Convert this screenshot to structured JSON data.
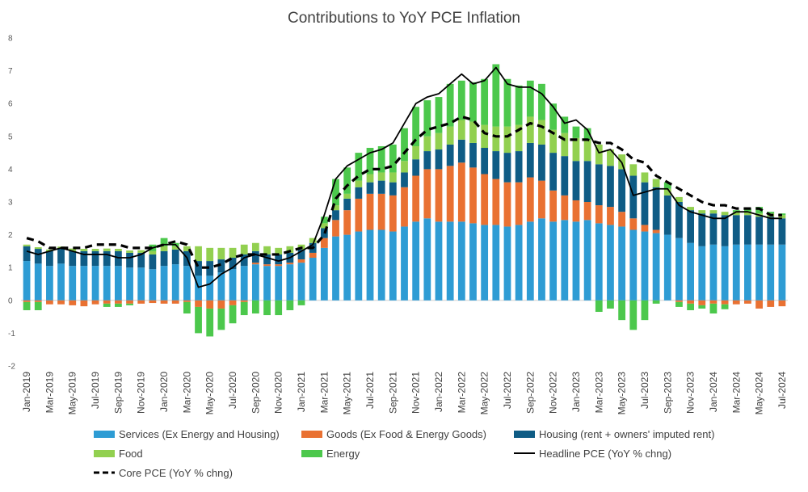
{
  "chart_data": {
    "type": "bar",
    "stacked": true,
    "title": "Contributions to YoY PCE Inflation",
    "xlabel": "",
    "ylabel": "",
    "ylim": [
      -2,
      8
    ],
    "yticks": [
      -2,
      -1,
      0,
      1,
      2,
      3,
      4,
      5,
      6,
      7,
      8
    ],
    "grid": false,
    "legend_position": "bottom",
    "categories": [
      "Jan-2019",
      "Feb-2019",
      "Mar-2019",
      "Apr-2019",
      "May-2019",
      "Jun-2019",
      "Jul-2019",
      "Aug-2019",
      "Sep-2019",
      "Oct-2019",
      "Nov-2019",
      "Dec-2019",
      "Jan-2020",
      "Feb-2020",
      "Mar-2020",
      "Apr-2020",
      "May-2020",
      "Jun-2020",
      "Jul-2020",
      "Aug-2020",
      "Sep-2020",
      "Oct-2020",
      "Nov-2020",
      "Dec-2020",
      "Jan-2021",
      "Feb-2021",
      "Mar-2021",
      "Apr-2021",
      "May-2021",
      "Jun-2021",
      "Jul-2021",
      "Aug-2021",
      "Sep-2021",
      "Oct-2021",
      "Nov-2021",
      "Dec-2021",
      "Jan-2022",
      "Feb-2022",
      "Mar-2022",
      "Apr-2022",
      "May-2022",
      "Jun-2022",
      "Jul-2022",
      "Aug-2022",
      "Sep-2022",
      "Oct-2022",
      "Nov-2022",
      "Dec-2022",
      "Jan-2023",
      "Feb-2023",
      "Mar-2023",
      "Apr-2023",
      "May-2023",
      "Jun-2023",
      "Jul-2023",
      "Aug-2023",
      "Sep-2023",
      "Oct-2023",
      "Nov-2023",
      "Dec-2023",
      "Jan-2024",
      "Feb-2024",
      "Mar-2024",
      "Apr-2024",
      "May-2024",
      "Jun-2024",
      "Jul-2024"
    ],
    "x_tick_labels": [
      "Jan-2019",
      "Mar-2019",
      "May-2019",
      "Jul-2019",
      "Sep-2019",
      "Nov-2019",
      "Jan-2020",
      "Mar-2020",
      "May-2020",
      "Jul-2020",
      "Sep-2020",
      "Nov-2020",
      "Jan-2021",
      "Mar-2021",
      "May-2021",
      "Jul-2021",
      "Sep-2021",
      "Nov-2021",
      "Jan-2022",
      "Mar-2022",
      "May-2022",
      "Jul-2022",
      "Sep-2022",
      "Nov-2022",
      "Jan-2023",
      "Mar-2023",
      "May-2023",
      "Jul-2023",
      "Sep-2023",
      "Nov-2023",
      "Jan-2024",
      "Mar-2024",
      "May-2024",
      "Jul-2024"
    ],
    "series": [
      {
        "name": "Services (Ex Energy and Housing)",
        "kind": "bar",
        "color": "#2E9CD4",
        "values": [
          1.2,
          1.12,
          1.05,
          1.12,
          1.05,
          1.05,
          1.05,
          1.05,
          1.05,
          1.0,
          1.0,
          0.95,
          1.05,
          1.1,
          1.05,
          0.75,
          0.75,
          0.85,
          0.95,
          1.05,
          1.1,
          1.05,
          1.05,
          1.1,
          1.15,
          1.3,
          1.6,
          1.95,
          2.0,
          2.1,
          2.15,
          2.15,
          2.1,
          2.25,
          2.4,
          2.5,
          2.4,
          2.4,
          2.4,
          2.35,
          2.3,
          2.3,
          2.25,
          2.3,
          2.4,
          2.5,
          2.4,
          2.45,
          2.4,
          2.45,
          2.35,
          2.3,
          2.25,
          2.15,
          2.1,
          2.05,
          2.0,
          1.9,
          1.75,
          1.65,
          1.7,
          1.65,
          1.7,
          1.7,
          1.7,
          1.7,
          1.7
        ]
      },
      {
        "name": "Goods (Ex Food & Energy Goods)",
        "kind": "bar",
        "color": "#E97132",
        "values": [
          -0.05,
          -0.05,
          -0.12,
          -0.12,
          -0.15,
          -0.18,
          -0.12,
          -0.1,
          -0.1,
          -0.1,
          -0.1,
          -0.08,
          -0.1,
          -0.1,
          -0.05,
          -0.2,
          -0.25,
          -0.25,
          -0.15,
          -0.05,
          0.05,
          0.05,
          0.05,
          0.05,
          0.1,
          0.15,
          0.3,
          0.5,
          0.75,
          1.0,
          1.1,
          1.1,
          1.1,
          1.2,
          1.4,
          1.5,
          1.6,
          1.7,
          1.8,
          1.7,
          1.55,
          1.4,
          1.35,
          1.3,
          1.35,
          1.15,
          0.95,
          0.75,
          0.65,
          0.55,
          0.55,
          0.55,
          0.45,
          0.35,
          0.2,
          0.1,
          0.0,
          -0.05,
          -0.1,
          -0.15,
          -0.1,
          -0.12,
          -0.12,
          -0.1,
          -0.25,
          -0.2,
          -0.18
        ]
      },
      {
        "name": "Housing (rent + owners' imputed rent)",
        "kind": "bar",
        "color": "#0F5C85",
        "values": [
          0.45,
          0.45,
          0.45,
          0.45,
          0.45,
          0.45,
          0.45,
          0.45,
          0.45,
          0.45,
          0.45,
          0.45,
          0.45,
          0.45,
          0.45,
          0.45,
          0.45,
          0.4,
          0.35,
          0.35,
          0.35,
          0.3,
          0.3,
          0.3,
          0.3,
          0.3,
          0.3,
          0.3,
          0.35,
          0.35,
          0.35,
          0.4,
          0.4,
          0.45,
          0.5,
          0.55,
          0.6,
          0.65,
          0.7,
          0.75,
          0.8,
          0.85,
          0.9,
          0.95,
          1.05,
          1.1,
          1.15,
          1.2,
          1.2,
          1.25,
          1.25,
          1.25,
          1.3,
          1.3,
          1.3,
          1.3,
          1.2,
          1.1,
          1.0,
          1.0,
          0.95,
          0.95,
          0.9,
          0.9,
          0.85,
          0.85,
          0.8
        ]
      },
      {
        "name": "Food",
        "kind": "bar",
        "color": "#92D050",
        "values": [
          0.05,
          0.05,
          0.05,
          0.07,
          0.08,
          0.07,
          0.07,
          0.08,
          0.07,
          0.07,
          0.08,
          0.1,
          0.15,
          0.1,
          0.15,
          0.45,
          0.4,
          0.35,
          0.3,
          0.3,
          0.25,
          0.25,
          0.2,
          0.2,
          0.15,
          0.15,
          0.15,
          0.15,
          0.15,
          0.2,
          0.25,
          0.25,
          0.3,
          0.35,
          0.4,
          0.45,
          0.5,
          0.55,
          0.6,
          0.65,
          0.7,
          0.75,
          0.8,
          0.8,
          0.8,
          0.75,
          0.7,
          0.7,
          0.7,
          0.65,
          0.6,
          0.5,
          0.45,
          0.35,
          0.3,
          0.25,
          0.2,
          0.15,
          0.1,
          0.1,
          0.1,
          0.1,
          0.1,
          0.1,
          0.1,
          0.1,
          0.1
        ]
      },
      {
        "name": "Energy",
        "kind": "bar",
        "color": "#4CC84C",
        "values": [
          -0.25,
          -0.25,
          0.0,
          0.0,
          0.0,
          0.0,
          0.0,
          -0.1,
          -0.1,
          -0.05,
          0.0,
          0.2,
          0.25,
          0.1,
          -0.35,
          -0.8,
          -0.85,
          -0.65,
          -0.55,
          -0.4,
          -0.4,
          -0.45,
          -0.45,
          -0.3,
          -0.15,
          0.0,
          0.2,
          0.8,
          0.8,
          0.85,
          0.8,
          0.8,
          0.85,
          1.0,
          1.2,
          1.1,
          1.1,
          1.3,
          1.2,
          1.2,
          1.4,
          1.9,
          1.45,
          1.2,
          1.1,
          1.1,
          0.8,
          0.5,
          0.35,
          0.35,
          -0.35,
          -0.25,
          -0.6,
          -0.9,
          -0.6,
          -0.1,
          0.2,
          -0.15,
          -0.2,
          -0.1,
          -0.3,
          -0.15,
          0.05,
          0.1,
          0.2,
          0.05,
          0.05
        ]
      },
      {
        "name": "Headline PCE (YoY % chng)",
        "kind": "line",
        "style": "solid",
        "color": "#000000",
        "values": [
          1.5,
          1.4,
          1.5,
          1.6,
          1.5,
          1.4,
          1.4,
          1.4,
          1.3,
          1.3,
          1.4,
          1.6,
          1.7,
          1.7,
          1.3,
          0.4,
          0.5,
          0.8,
          1.0,
          1.3,
          1.4,
          1.3,
          1.2,
          1.3,
          1.5,
          1.7,
          2.6,
          3.7,
          4.1,
          4.3,
          4.5,
          4.6,
          4.8,
          5.4,
          6.0,
          6.2,
          6.3,
          6.6,
          6.9,
          6.6,
          6.7,
          7.1,
          6.6,
          6.5,
          6.5,
          6.3,
          5.9,
          5.4,
          5.5,
          5.2,
          4.5,
          4.6,
          4.2,
          3.2,
          3.3,
          3.4,
          3.4,
          2.9,
          2.7,
          2.6,
          2.5,
          2.5,
          2.7,
          2.7,
          2.6,
          2.5,
          2.5
        ]
      },
      {
        "name": "Core PCE (YoY % chng)",
        "kind": "line",
        "style": "dashed",
        "color": "#000000",
        "values": [
          1.9,
          1.8,
          1.6,
          1.6,
          1.6,
          1.6,
          1.7,
          1.7,
          1.7,
          1.6,
          1.6,
          1.6,
          1.7,
          1.8,
          1.7,
          1.0,
          1.0,
          1.1,
          1.3,
          1.4,
          1.4,
          1.4,
          1.4,
          1.5,
          1.6,
          1.6,
          2.0,
          3.1,
          3.5,
          3.8,
          4.0,
          4.0,
          4.1,
          4.5,
          4.9,
          5.2,
          5.3,
          5.4,
          5.6,
          5.5,
          5.1,
          5.0,
          5.0,
          5.2,
          5.4,
          5.3,
          5.1,
          4.9,
          4.9,
          4.9,
          4.8,
          4.8,
          4.6,
          4.3,
          4.2,
          3.8,
          3.6,
          3.4,
          3.2,
          3.0,
          2.9,
          2.9,
          2.8,
          2.8,
          2.8,
          2.6,
          2.6
        ]
      }
    ],
    "legend": [
      {
        "label": "Services (Ex Energy and Housing)",
        "marker": "box",
        "color": "#2E9CD4"
      },
      {
        "label": "Goods (Ex Food & Energy Goods)",
        "marker": "box",
        "color": "#E97132"
      },
      {
        "label": "Housing (rent + owners' imputed rent)",
        "marker": "box",
        "color": "#0F5C85"
      },
      {
        "label": "Food",
        "marker": "box",
        "color": "#92D050"
      },
      {
        "label": "Energy",
        "marker": "box",
        "color": "#4CC84C"
      },
      {
        "label": "Headline PCE (YoY % chng)",
        "marker": "solid-line",
        "color": "#000000"
      },
      {
        "label": "Core PCE (YoY % chng)",
        "marker": "dashed-line",
        "color": "#000000"
      }
    ]
  }
}
